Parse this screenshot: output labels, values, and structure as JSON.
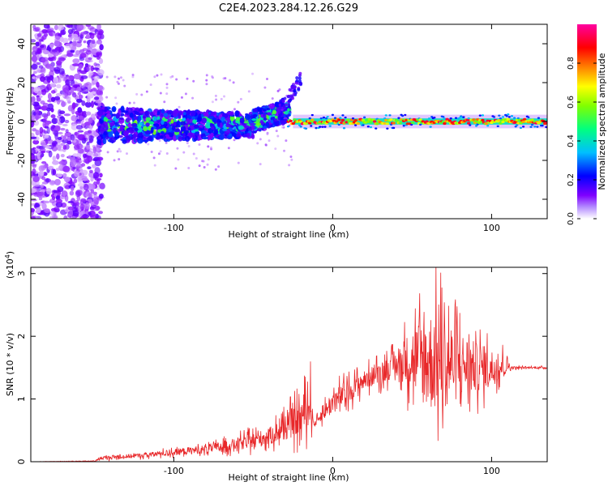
{
  "title": "C2E4.2023.284.12.26.G29",
  "colors": {
    "snr_line": "#e8282a",
    "colormap": [
      "#ffffff",
      "#7f00ff",
      "#0000ff",
      "#00bfff",
      "#00ff80",
      "#80ff00",
      "#ffff00",
      "#ff8000",
      "#ff0000",
      "#ff00a0"
    ]
  },
  "chart_data": [
    {
      "type": "heatmap",
      "title": "",
      "xlabel": "Height of straight line (km)",
      "ylabel": "Frequency (Hz)",
      "xlim": [
        -190,
        135
      ],
      "ylim": [
        -50,
        50
      ],
      "x_ticks": [
        -100,
        0,
        100
      ],
      "y_ticks": [
        -40,
        -20,
        0,
        20,
        40
      ],
      "colorbar": {
        "label": "Normalized spectral amplitude",
        "range": [
          0,
          1
        ],
        "ticks": [
          "0.0",
          "0.2",
          "0.4",
          "0.6",
          "0.8"
        ],
        "tick_values": [
          0,
          0.2,
          0.4,
          0.6,
          0.8
        ]
      },
      "description_regions": [
        {
          "x_range": [
            -190,
            -145
          ],
          "freq_range": [
            -50,
            50
          ],
          "amplitude": "low, scattered"
        },
        {
          "x_range": [
            -145,
            -30
          ],
          "freq_range": [
            -15,
            12
          ],
          "amplitude": "medium, noisy"
        },
        {
          "x_range": [
            -30,
            135
          ],
          "freq_range": [
            -3,
            3
          ],
          "amplitude": "high, narrow line near 0 Hz"
        }
      ]
    },
    {
      "type": "line",
      "title": "",
      "xlabel": "Height of straight line (km)",
      "ylabel": "SNR (10 * v/v)",
      "axis_multiplier": "(x10^4)",
      "xlim": [
        -190,
        135
      ],
      "ylim": [
        0,
        3.1
      ],
      "x_ticks": [
        -100,
        0,
        100
      ],
      "y_ticks": [
        0,
        1,
        2,
        3
      ],
      "series": [
        {
          "envelope_x": [
            -190,
            -150,
            -145,
            -120,
            -100,
            -80,
            -60,
            -40,
            -30,
            -20,
            -14,
            -12,
            0,
            20,
            40,
            50,
            60,
            66,
            70,
            80,
            90,
            100,
            110,
            112,
            120,
            135
          ],
          "envelope_mean": [
            0.0,
            0.01,
            0.06,
            0.1,
            0.15,
            0.2,
            0.28,
            0.4,
            0.55,
            0.7,
            0.95,
            0.6,
            0.95,
            1.3,
            1.55,
            1.65,
            1.6,
            1.6,
            1.6,
            1.55,
            1.5,
            1.5,
            1.55,
            1.5,
            1.5,
            1.5
          ],
          "envelope_halfwidth": [
            0.0,
            0.01,
            0.06,
            0.07,
            0.1,
            0.14,
            0.2,
            0.28,
            0.4,
            0.6,
            0.7,
            0.05,
            0.4,
            0.3,
            0.4,
            1.0,
            1.6,
            1.6,
            1.5,
            1.1,
            0.8,
            0.6,
            0.3,
            0.05,
            0.03,
            0.03
          ]
        }
      ]
    }
  ]
}
